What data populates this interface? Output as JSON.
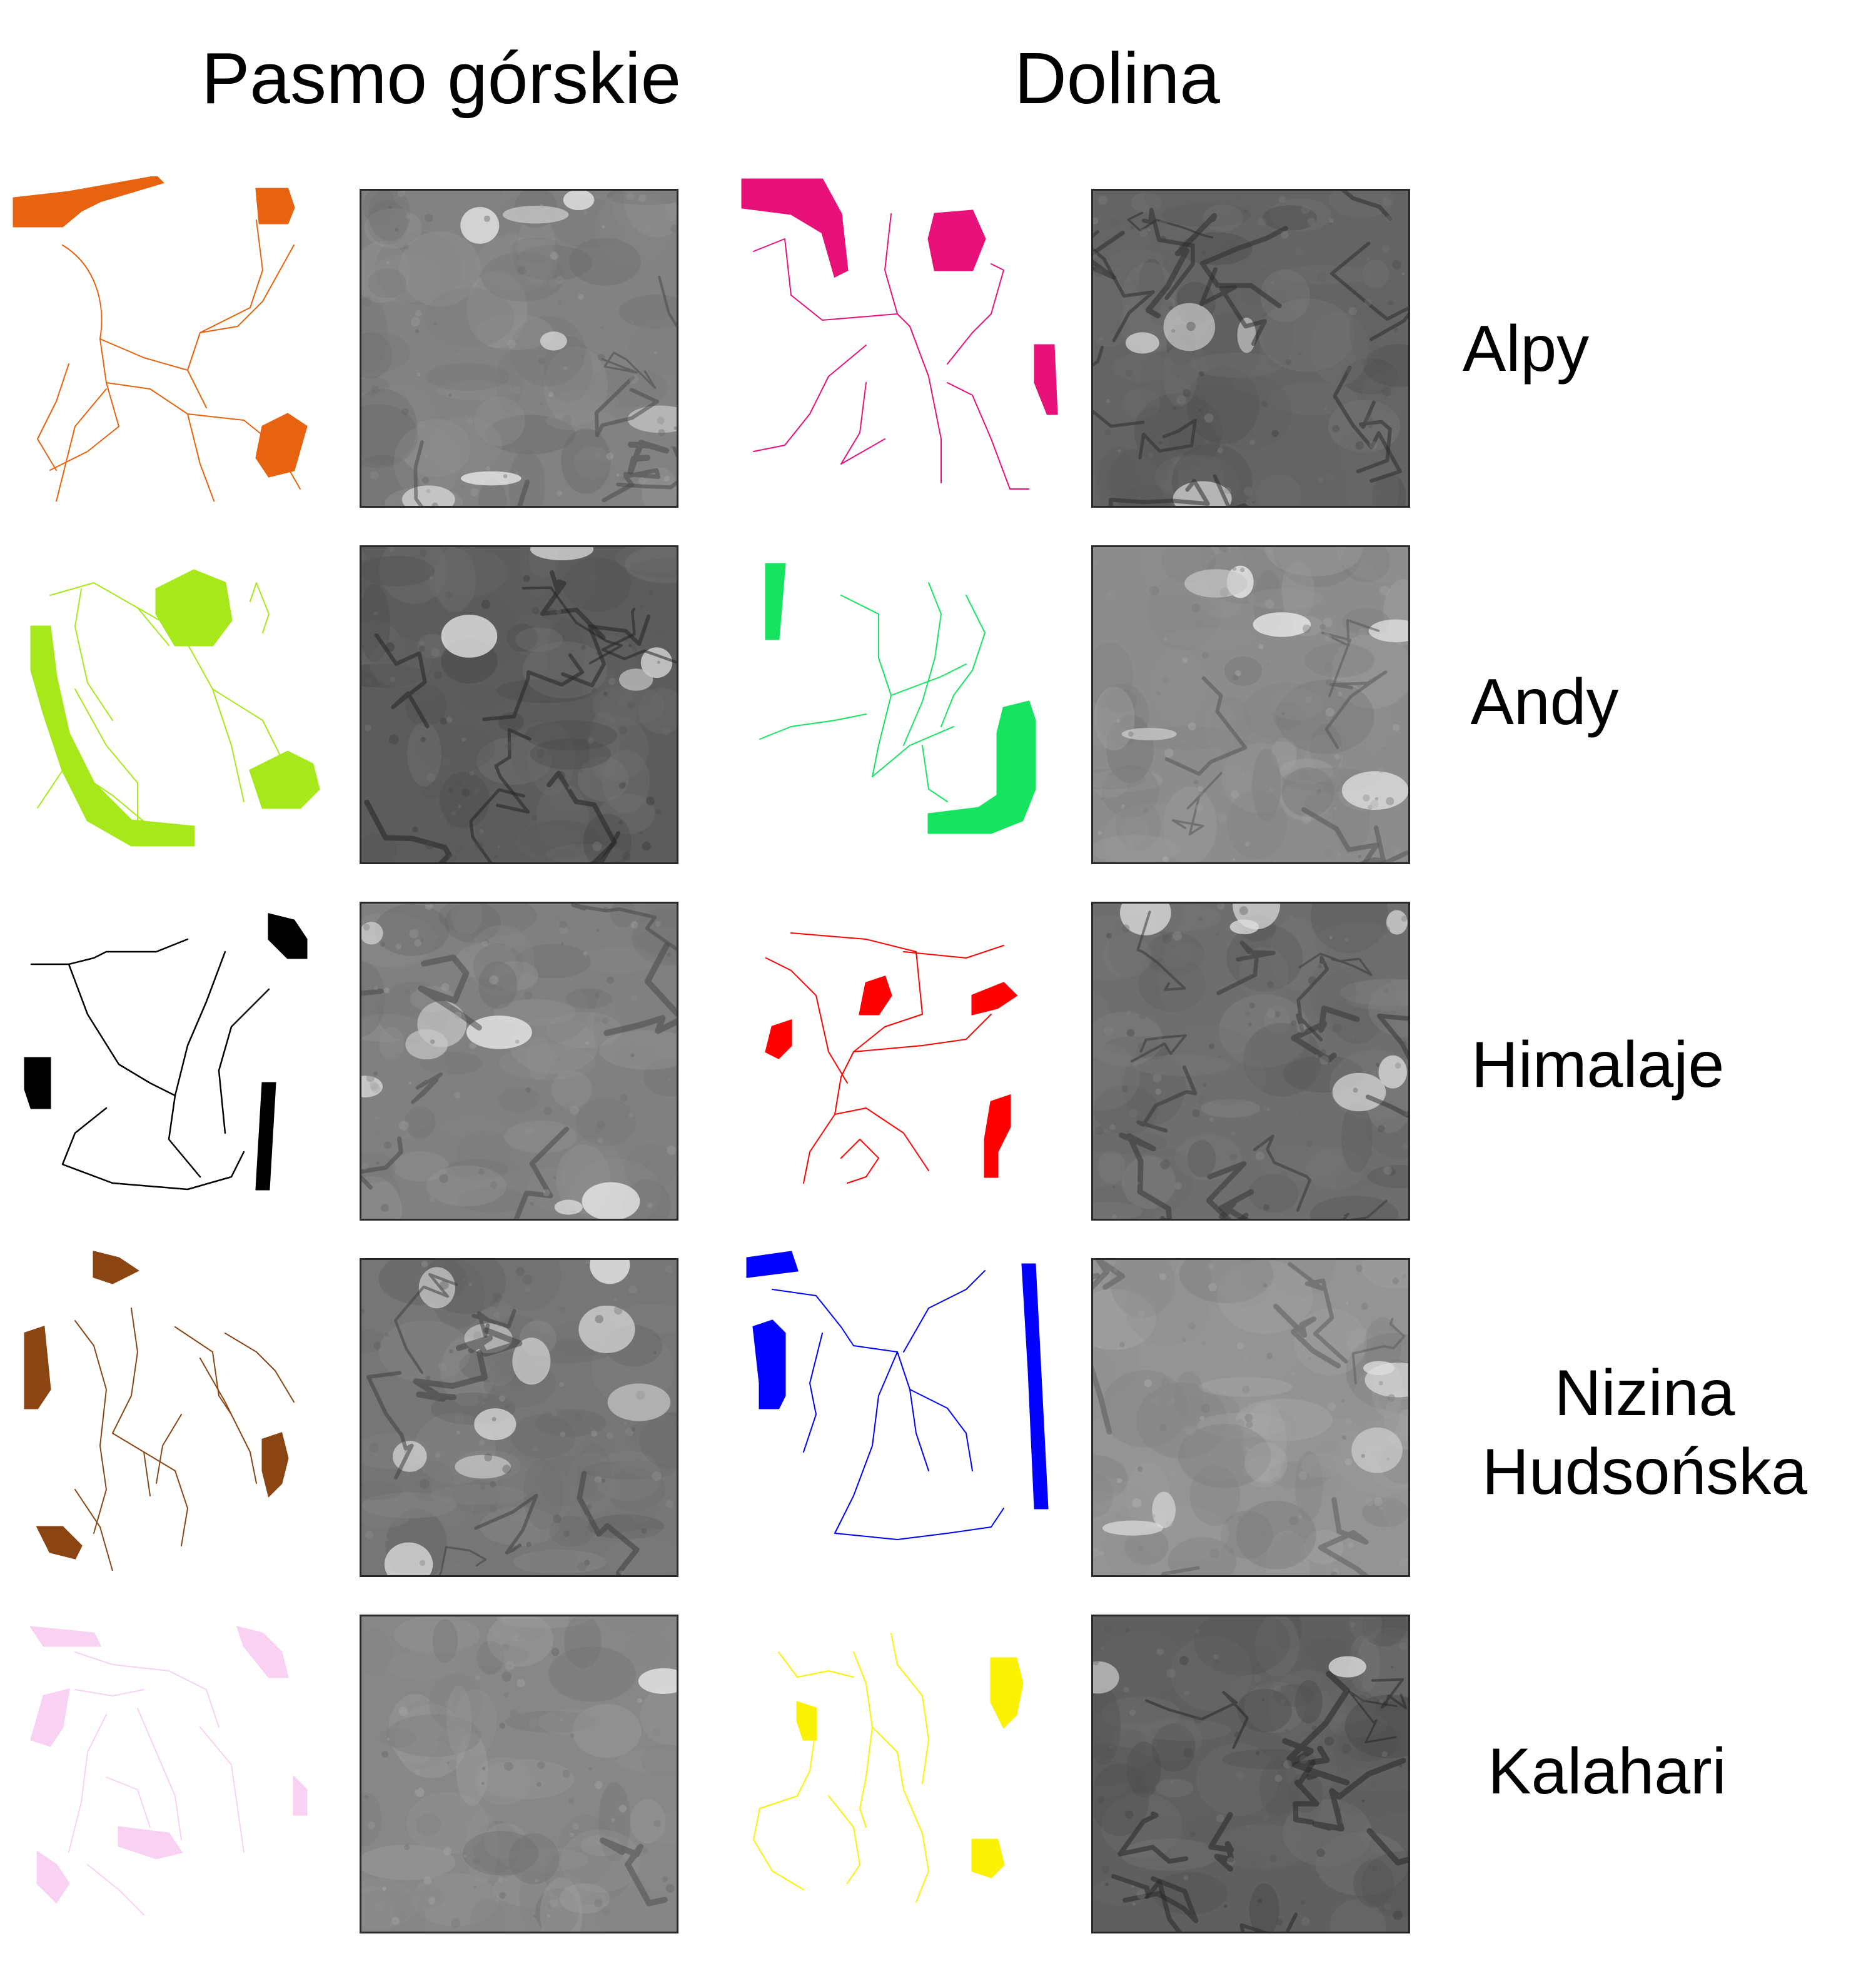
{
  "headers": {
    "mountain": "Pasmo górskie",
    "valley": "Dolina"
  },
  "regions": [
    {
      "label_lines": [
        "Alpy"
      ],
      "mountain_sketch_color": "#e8630f",
      "valley_sketch_color": "#e8117a"
    },
    {
      "label_lines": [
        "Andy"
      ],
      "mountain_sketch_color": "#a6e81a",
      "valley_sketch_color": "#16e35f"
    },
    {
      "label_lines": [
        "Himalaje"
      ],
      "mountain_sketch_color": "#000000",
      "valley_sketch_color": "#ff0000"
    },
    {
      "label_lines": [
        "Nizina",
        "Hudsońska"
      ],
      "mountain_sketch_color": "#8b4513",
      "valley_sketch_color": "#0000ff"
    },
    {
      "label_lines": [
        "Kalahari"
      ],
      "mountain_sketch_color": "#f9d2f3",
      "valley_sketch_color": "#fbf200"
    }
  ]
}
